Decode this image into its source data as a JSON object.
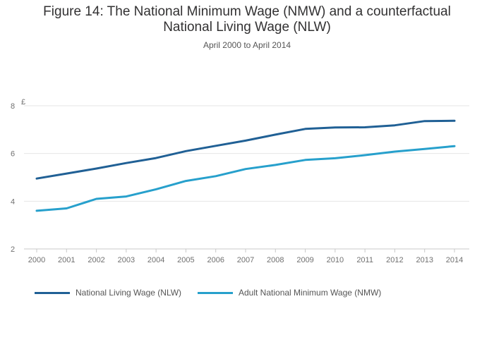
{
  "chart_data": {
    "type": "line",
    "title_lines": [
      "Figure 14: The National Minimum Wage (NMW) and a counterfactual",
      "National Living Wage (NLW)"
    ],
    "subtitle": "April 2000 to April 2014",
    "ylabel": "£",
    "xlabel": "",
    "ylim": [
      2,
      8
    ],
    "yticks": [
      2,
      4,
      6,
      8
    ],
    "categories": [
      "2000",
      "2001",
      "2002",
      "2003",
      "2004",
      "2005",
      "2006",
      "2007",
      "2008",
      "2009",
      "2010",
      "2011",
      "2012",
      "2013",
      "2014"
    ],
    "grid": true,
    "legend_position": "bottom-left",
    "series": [
      {
        "name": "National Living Wage (NLW)",
        "color": "#206095",
        "values": [
          4.95,
          5.16,
          5.37,
          5.6,
          5.81,
          6.1,
          6.32,
          6.54,
          6.79,
          7.03,
          7.09,
          7.1,
          7.18,
          7.36,
          7.37
        ]
      },
      {
        "name": "Adult National Minimum Wage (NMW)",
        "color": "#27a0cc",
        "values": [
          3.6,
          3.7,
          4.1,
          4.2,
          4.5,
          4.85,
          5.05,
          5.35,
          5.52,
          5.73,
          5.8,
          5.93,
          6.08,
          6.19,
          6.31
        ]
      }
    ]
  }
}
